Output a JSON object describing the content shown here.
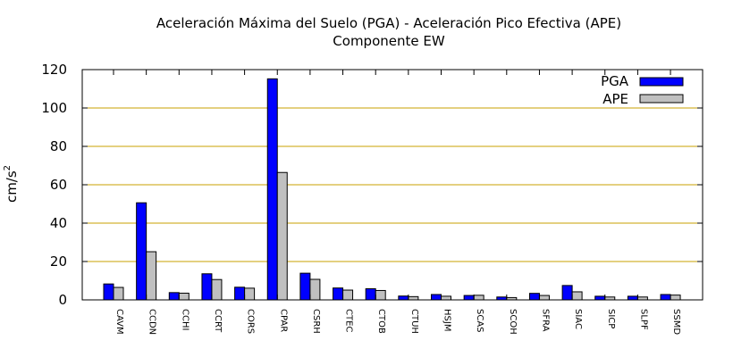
{
  "chart_data": {
    "type": "bar",
    "title": "Aceleración Máxima del Suelo (PGA) -  Aceleración Pico Efectiva (APE)",
    "subtitle": "Componente EW",
    "ylabel": "cm/s",
    "ylabel_superscript": "2",
    "xlabel": "",
    "ylim": [
      0,
      120
    ],
    "yticks": [
      0,
      20,
      40,
      60,
      80,
      100,
      120
    ],
    "grid": "horizontal",
    "legend_position": "top-right",
    "categories": [
      "CAVM",
      "CCDN",
      "CCHI",
      "CCRT",
      "CORS",
      "CPAR",
      "CSRH",
      "CTEC",
      "CTOB",
      "CTUH",
      "HSJM",
      "SCAS",
      "SCOH",
      "SFRA",
      "SIAC",
      "SICP",
      "SLPF",
      "SSMD"
    ],
    "series": [
      {
        "name": "PGA",
        "color": "#0000ff",
        "values": [
          8.3,
          50.6,
          3.8,
          13.6,
          6.6,
          115.2,
          13.9,
          6.2,
          5.8,
          2.0,
          2.8,
          2.3,
          1.5,
          3.4,
          7.5,
          1.9,
          1.9,
          2.8
        ]
      },
      {
        "name": "APE",
        "color": "#c0c0c0",
        "values": [
          6.5,
          25.1,
          3.5,
          10.6,
          6.1,
          66.4,
          10.7,
          5.1,
          4.9,
          1.7,
          1.9,
          2.4,
          1.2,
          2.3,
          4.2,
          1.5,
          1.5,
          2.5
        ]
      }
    ]
  }
}
